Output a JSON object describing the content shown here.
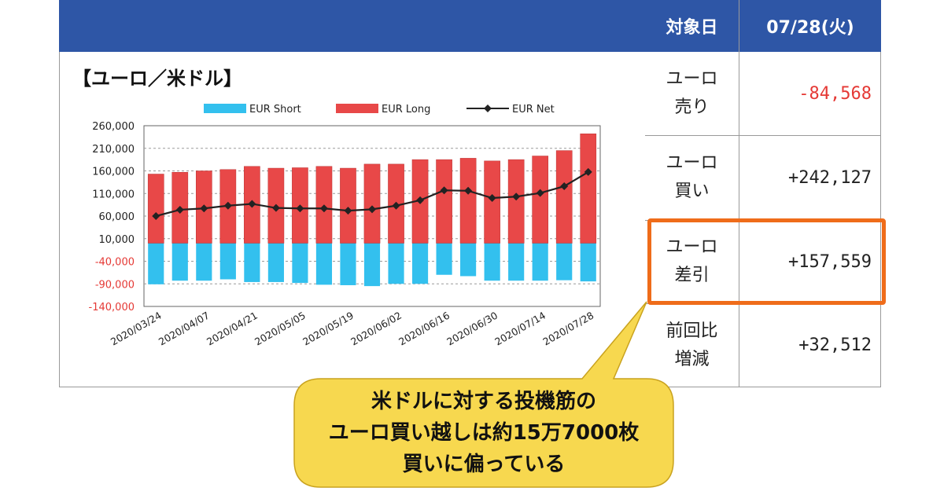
{
  "chart_title": "【ユーロ／米ドル】",
  "table": {
    "header_date_label": "対象日",
    "header_date_value": "07/28(火)",
    "rows": [
      {
        "label1": "ユーロ",
        "label2": "売り",
        "value": "-84,568",
        "color": "#e53935"
      },
      {
        "label1": "ユーロ",
        "label2": "買い",
        "value": "+242,127",
        "color": "#222222"
      },
      {
        "label1": "ユーロ",
        "label2": "差引",
        "value": "+157,559",
        "color": "#222222"
      },
      {
        "label1": "前回比",
        "label2": "増減",
        "value": "+32,512",
        "color": "#222222"
      }
    ]
  },
  "callout": {
    "line1": "米ドルに対する投機筋の",
    "line2": "ユーロ買い越しは約15万7000枚",
    "line3": "買いに偏っている"
  },
  "colors": {
    "header_bg": "#2e56a6",
    "short": "#33c0ee",
    "long": "#e84848",
    "net": "#222222",
    "highlight": "#ef6c1a",
    "callout_bg": "#f7d84f"
  },
  "chart_data": {
    "type": "bar",
    "legend": [
      "EUR Short",
      "EUR Long",
      "EUR Net"
    ],
    "legend_position": "top",
    "y_ticks": [
      "260,000",
      "210,000",
      "160,000",
      "110,000",
      "60,000",
      "10,000",
      "-40,000",
      "-90,000",
      "-140,000"
    ],
    "ylim": [
      -140000,
      260000
    ],
    "x_tick_labels": [
      "2020/03/24",
      "2020/04/07",
      "2020/04/21",
      "2020/05/05",
      "2020/05/19",
      "2020/06/02",
      "2020/06/16",
      "2020/06/30",
      "2020/07/14",
      "2020/07/28"
    ],
    "categories": [
      "2020/03/24",
      "2020/03/31",
      "2020/04/07",
      "2020/04/14",
      "2020/04/21",
      "2020/04/28",
      "2020/05/05",
      "2020/05/12",
      "2020/05/19",
      "2020/05/26",
      "2020/06/02",
      "2020/06/09",
      "2020/06/16",
      "2020/06/23",
      "2020/06/30",
      "2020/07/07",
      "2020/07/14",
      "2020/07/21",
      "2020/07/28"
    ],
    "series": [
      {
        "name": "EUR Short",
        "values": [
          -91000,
          -83000,
          -83000,
          -80000,
          -86000,
          -86000,
          -88000,
          -92000,
          -93000,
          -95000,
          -90000,
          -90000,
          -70000,
          -73000,
          -83000,
          -83000,
          -83000,
          -82000,
          -84568
        ]
      },
      {
        "name": "EUR Long",
        "values": [
          153000,
          157000,
          160000,
          163000,
          170000,
          166000,
          167000,
          170000,
          166000,
          175000,
          175000,
          185000,
          185000,
          188000,
          182000,
          185000,
          193000,
          205000,
          242127
        ]
      },
      {
        "name": "EUR Net",
        "values": [
          60000,
          74000,
          77000,
          83000,
          87000,
          78000,
          77000,
          77000,
          72000,
          75000,
          83000,
          95000,
          117000,
          116000,
          100000,
          103000,
          111000,
          126000,
          157559
        ]
      }
    ]
  }
}
